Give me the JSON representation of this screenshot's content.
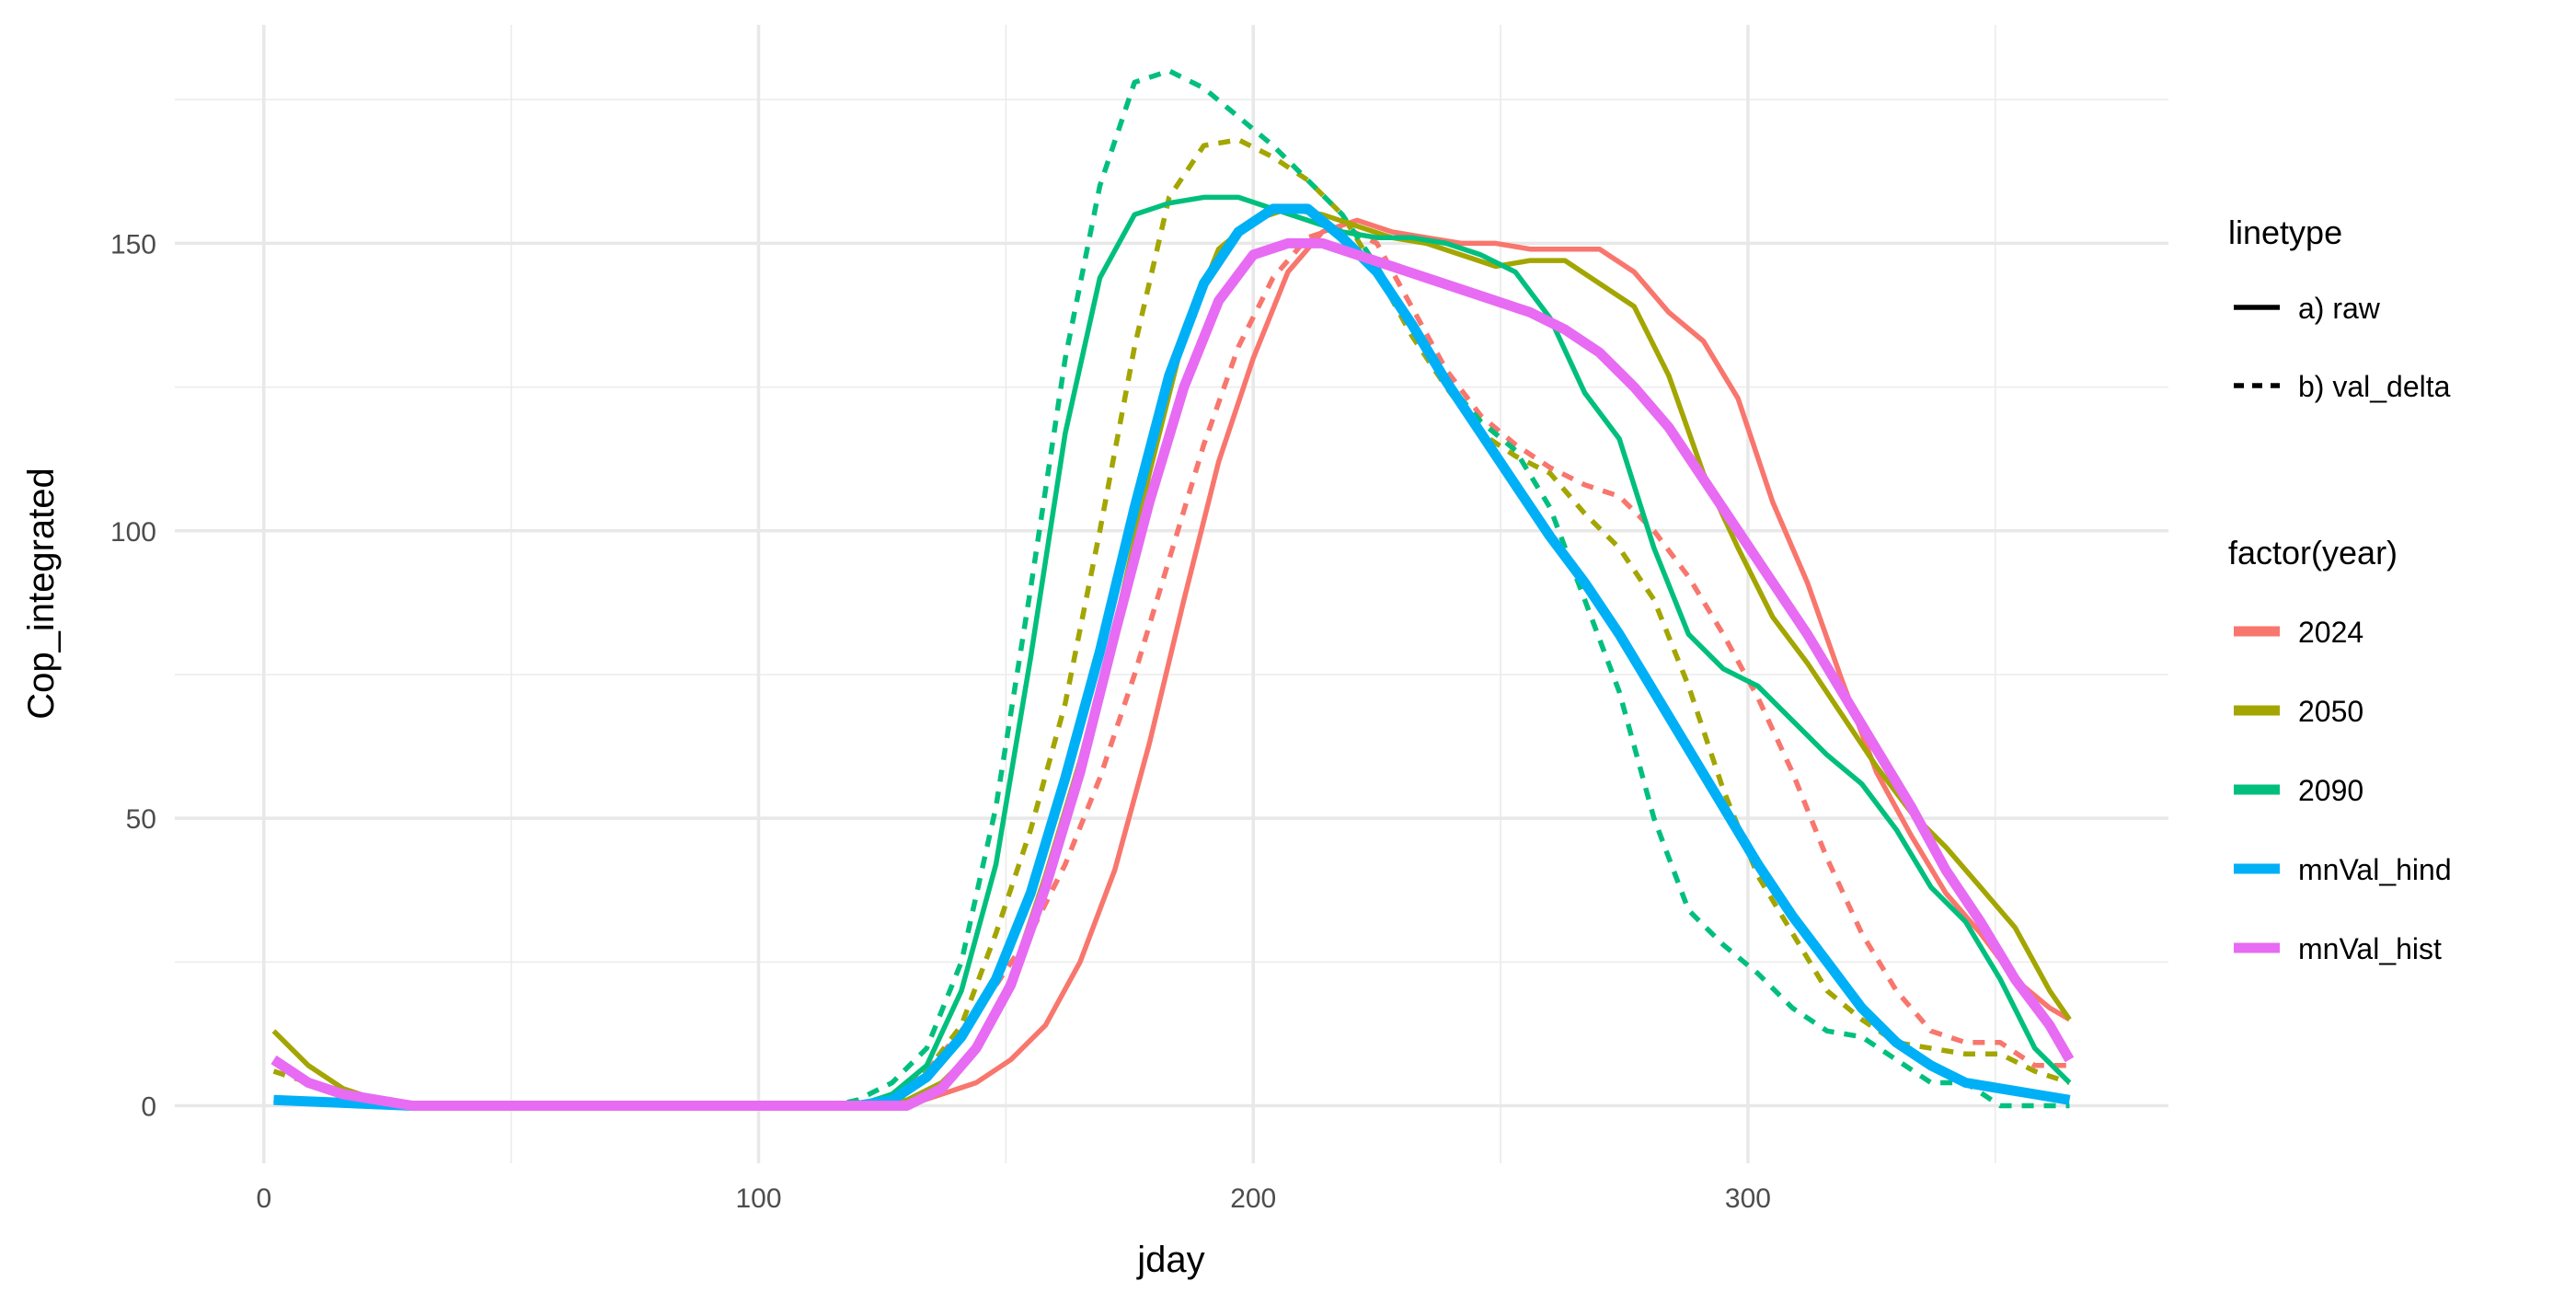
{
  "chart_data": {
    "type": "line",
    "xlabel": "jday",
    "ylabel": "Cop_integrated",
    "xlim": [
      -18,
      385
    ],
    "ylim": [
      -10,
      188
    ],
    "x_ticks": [
      0,
      100,
      200,
      300
    ],
    "y_ticks": [
      0,
      50,
      100,
      150
    ],
    "grid": true,
    "legend_position": "right",
    "legends": {
      "linetype": {
        "title": "linetype",
        "items": [
          {
            "label": "a) raw",
            "dash": "solid"
          },
          {
            "label": "b) val_delta",
            "dash": "dashed"
          }
        ]
      },
      "color": {
        "title": "factor(year)",
        "items": [
          {
            "label": "2024",
            "color": "#F8766D"
          },
          {
            "label": "2050",
            "color": "#A3A500"
          },
          {
            "label": "2090",
            "color": "#00BF7D"
          },
          {
            "label": "mnVal_hind",
            "color": "#00B0F6"
          },
          {
            "label": "mnVal_hist",
            "color": "#E76BF3"
          }
        ]
      }
    },
    "series": [
      {
        "name": "2024",
        "linetype": "b) val_delta",
        "color": "#F8766D",
        "points": [
          [
            2,
            1
          ],
          [
            30,
            0
          ],
          [
            120,
            0
          ],
          [
            127,
            2
          ],
          [
            134,
            6
          ],
          [
            141,
            13
          ],
          [
            148,
            21
          ],
          [
            155,
            30
          ],
          [
            162,
            42
          ],
          [
            169,
            57
          ],
          [
            176,
            75
          ],
          [
            183,
            95
          ],
          [
            190,
            115
          ],
          [
            197,
            132
          ],
          [
            204,
            144
          ],
          [
            211,
            151
          ],
          [
            218,
            153
          ],
          [
            225,
            150
          ],
          [
            232,
            139
          ],
          [
            239,
            128
          ],
          [
            246,
            120
          ],
          [
            253,
            115
          ],
          [
            260,
            111
          ],
          [
            267,
            108
          ],
          [
            274,
            106
          ],
          [
            281,
            100
          ],
          [
            288,
            92
          ],
          [
            295,
            82
          ],
          [
            302,
            71
          ],
          [
            309,
            58
          ],
          [
            316,
            43
          ],
          [
            323,
            30
          ],
          [
            330,
            20
          ],
          [
            337,
            13
          ],
          [
            344,
            11
          ],
          [
            351,
            11
          ],
          [
            358,
            7
          ],
          [
            365,
            7
          ]
        ]
      },
      {
        "name": "2050",
        "linetype": "b) val_delta",
        "color": "#A3A500",
        "points": [
          [
            2,
            6
          ],
          [
            9,
            4
          ],
          [
            16,
            2
          ],
          [
            30,
            0
          ],
          [
            120,
            0
          ],
          [
            127,
            2
          ],
          [
            134,
            6
          ],
          [
            141,
            14
          ],
          [
            148,
            30
          ],
          [
            155,
            48
          ],
          [
            162,
            70
          ],
          [
            169,
            100
          ],
          [
            176,
            132
          ],
          [
            183,
            158
          ],
          [
            190,
            167
          ],
          [
            197,
            168
          ],
          [
            204,
            165
          ],
          [
            211,
            161
          ],
          [
            218,
            155
          ],
          [
            225,
            145
          ],
          [
            232,
            134
          ],
          [
            239,
            125
          ],
          [
            246,
            117
          ],
          [
            253,
            113
          ],
          [
            260,
            110
          ],
          [
            267,
            103
          ],
          [
            274,
            97
          ],
          [
            281,
            88
          ],
          [
            288,
            73
          ],
          [
            295,
            55
          ],
          [
            302,
            40
          ],
          [
            309,
            30
          ],
          [
            316,
            20
          ],
          [
            323,
            15
          ],
          [
            330,
            11
          ],
          [
            337,
            10
          ],
          [
            344,
            9
          ],
          [
            351,
            9
          ],
          [
            358,
            6
          ],
          [
            365,
            4
          ]
        ]
      },
      {
        "name": "2090",
        "linetype": "b) val_delta",
        "color": "#00BF7D",
        "points": [
          [
            2,
            1
          ],
          [
            30,
            0
          ],
          [
            115,
            0
          ],
          [
            120,
            1
          ],
          [
            127,
            4
          ],
          [
            134,
            10
          ],
          [
            141,
            25
          ],
          [
            148,
            52
          ],
          [
            155,
            90
          ],
          [
            162,
            130
          ],
          [
            169,
            160
          ],
          [
            176,
            178
          ],
          [
            183,
            180
          ],
          [
            190,
            177
          ],
          [
            197,
            172
          ],
          [
            204,
            167
          ],
          [
            211,
            161
          ],
          [
            218,
            155
          ],
          [
            225,
            146
          ],
          [
            232,
            136
          ],
          [
            239,
            126
          ],
          [
            246,
            119
          ],
          [
            253,
            114
          ],
          [
            260,
            104
          ],
          [
            267,
            88
          ],
          [
            274,
            72
          ],
          [
            281,
            50
          ],
          [
            288,
            34
          ],
          [
            295,
            28
          ],
          [
            302,
            23
          ],
          [
            309,
            17
          ],
          [
            316,
            13
          ],
          [
            323,
            12
          ],
          [
            330,
            8
          ],
          [
            337,
            4
          ],
          [
            344,
            4
          ],
          [
            351,
            0
          ],
          [
            358,
            0
          ],
          [
            365,
            0
          ]
        ]
      },
      {
        "name": "2024",
        "linetype": "a) raw",
        "color": "#F8766D",
        "points": [
          [
            2,
            1
          ],
          [
            30,
            0
          ],
          [
            130,
            0
          ],
          [
            137,
            2
          ],
          [
            144,
            4
          ],
          [
            151,
            8
          ],
          [
            158,
            14
          ],
          [
            165,
            25
          ],
          [
            172,
            41
          ],
          [
            179,
            63
          ],
          [
            186,
            88
          ],
          [
            193,
            112
          ],
          [
            200,
            130
          ],
          [
            207,
            145
          ],
          [
            214,
            152
          ],
          [
            221,
            154
          ],
          [
            228,
            152
          ],
          [
            235,
            151
          ],
          [
            242,
            150
          ],
          [
            249,
            150
          ],
          [
            256,
            149
          ],
          [
            263,
            149
          ],
          [
            270,
            149
          ],
          [
            277,
            145
          ],
          [
            284,
            138
          ],
          [
            291,
            133
          ],
          [
            298,
            123
          ],
          [
            305,
            105
          ],
          [
            312,
            91
          ],
          [
            319,
            74
          ],
          [
            326,
            58
          ],
          [
            333,
            47
          ],
          [
            340,
            37
          ],
          [
            347,
            30
          ],
          [
            354,
            22
          ],
          [
            361,
            17
          ],
          [
            365,
            15
          ]
        ]
      },
      {
        "name": "2050",
        "linetype": "a) raw",
        "color": "#A3A500",
        "points": [
          [
            2,
            13
          ],
          [
            9,
            7
          ],
          [
            16,
            3
          ],
          [
            23,
            1
          ],
          [
            30,
            0
          ],
          [
            120,
            0
          ],
          [
            130,
            1
          ],
          [
            137,
            4
          ],
          [
            144,
            10
          ],
          [
            151,
            22
          ],
          [
            158,
            40
          ],
          [
            165,
            60
          ],
          [
            172,
            83
          ],
          [
            179,
            110
          ],
          [
            186,
            134
          ],
          [
            193,
            149
          ],
          [
            200,
            154
          ],
          [
            207,
            156
          ],
          [
            214,
            155
          ],
          [
            221,
            153
          ],
          [
            228,
            151
          ],
          [
            235,
            150
          ],
          [
            242,
            148
          ],
          [
            249,
            146
          ],
          [
            256,
            147
          ],
          [
            263,
            147
          ],
          [
            270,
            143
          ],
          [
            277,
            139
          ],
          [
            284,
            127
          ],
          [
            291,
            110
          ],
          [
            298,
            97
          ],
          [
            305,
            85
          ],
          [
            312,
            77
          ],
          [
            319,
            68
          ],
          [
            326,
            59
          ],
          [
            333,
            51
          ],
          [
            340,
            45
          ],
          [
            347,
            38
          ],
          [
            354,
            31
          ],
          [
            361,
            20
          ],
          [
            365,
            15
          ]
        ]
      },
      {
        "name": "2090",
        "linetype": "a) raw",
        "color": "#00BF7D",
        "points": [
          [
            2,
            1
          ],
          [
            30,
            0
          ],
          [
            120,
            0
          ],
          [
            127,
            2
          ],
          [
            134,
            7
          ],
          [
            141,
            20
          ],
          [
            148,
            42
          ],
          [
            155,
            78
          ],
          [
            162,
            117
          ],
          [
            169,
            144
          ],
          [
            176,
            155
          ],
          [
            183,
            157
          ],
          [
            190,
            158
          ],
          [
            197,
            158
          ],
          [
            204,
            156
          ],
          [
            211,
            154
          ],
          [
            218,
            152
          ],
          [
            225,
            151
          ],
          [
            232,
            151
          ],
          [
            239,
            150
          ],
          [
            246,
            148
          ],
          [
            253,
            145
          ],
          [
            260,
            137
          ],
          [
            267,
            124
          ],
          [
            274,
            116
          ],
          [
            281,
            97
          ],
          [
            288,
            82
          ],
          [
            295,
            76
          ],
          [
            302,
            73
          ],
          [
            309,
            67
          ],
          [
            316,
            61
          ],
          [
            323,
            56
          ],
          [
            330,
            48
          ],
          [
            337,
            38
          ],
          [
            344,
            32
          ],
          [
            351,
            22
          ],
          [
            358,
            10
          ],
          [
            365,
            4
          ]
        ]
      },
      {
        "name": "mnVal_hind",
        "linetype": "a) raw",
        "color": "#00B0F6",
        "points": [
          [
            2,
            1
          ],
          [
            30,
            0
          ],
          [
            120,
            0
          ],
          [
            127,
            1
          ],
          [
            134,
            5
          ],
          [
            141,
            12
          ],
          [
            148,
            22
          ],
          [
            155,
            37
          ],
          [
            162,
            57
          ],
          [
            169,
            79
          ],
          [
            176,
            104
          ],
          [
            183,
            127
          ],
          [
            190,
            143
          ],
          [
            197,
            152
          ],
          [
            204,
            156
          ],
          [
            211,
            156
          ],
          [
            218,
            151
          ],
          [
            225,
            145
          ],
          [
            232,
            136
          ],
          [
            239,
            126
          ],
          [
            246,
            117
          ],
          [
            253,
            108
          ],
          [
            260,
            99
          ],
          [
            267,
            91
          ],
          [
            274,
            82
          ],
          [
            281,
            72
          ],
          [
            288,
            62
          ],
          [
            295,
            52
          ],
          [
            302,
            42
          ],
          [
            309,
            33
          ],
          [
            316,
            25
          ],
          [
            323,
            17
          ],
          [
            330,
            11
          ],
          [
            337,
            7
          ],
          [
            344,
            4
          ],
          [
            351,
            3
          ],
          [
            358,
            2
          ],
          [
            365,
            1
          ]
        ]
      },
      {
        "name": "mnVal_hist",
        "linetype": "a) raw",
        "color": "#E76BF3",
        "points": [
          [
            2,
            8
          ],
          [
            9,
            4
          ],
          [
            16,
            2
          ],
          [
            30,
            0
          ],
          [
            130,
            0
          ],
          [
            137,
            3
          ],
          [
            144,
            10
          ],
          [
            151,
            21
          ],
          [
            158,
            38
          ],
          [
            165,
            58
          ],
          [
            172,
            82
          ],
          [
            179,
            105
          ],
          [
            186,
            125
          ],
          [
            193,
            140
          ],
          [
            200,
            148
          ],
          [
            207,
            150
          ],
          [
            214,
            150
          ],
          [
            221,
            148
          ],
          [
            228,
            146
          ],
          [
            235,
            144
          ],
          [
            242,
            142
          ],
          [
            249,
            140
          ],
          [
            256,
            138
          ],
          [
            263,
            135
          ],
          [
            270,
            131
          ],
          [
            277,
            125
          ],
          [
            284,
            118
          ],
          [
            291,
            109
          ],
          [
            298,
            100
          ],
          [
            305,
            91
          ],
          [
            312,
            82
          ],
          [
            319,
            72
          ],
          [
            326,
            62
          ],
          [
            333,
            52
          ],
          [
            340,
            41
          ],
          [
            347,
            32
          ],
          [
            354,
            22
          ],
          [
            361,
            14
          ],
          [
            365,
            8
          ]
        ]
      }
    ]
  }
}
